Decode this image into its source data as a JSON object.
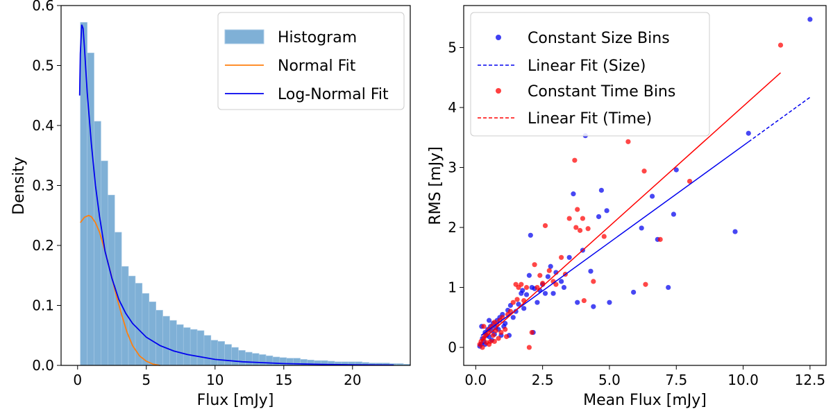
{
  "chart_data": [
    {
      "type": "histogram",
      "xlabel": "Flux [mJy]",
      "ylabel": "Density",
      "xlim": [
        -1.2,
        24.2
      ],
      "ylim": [
        0,
        0.6
      ],
      "xticks": [
        0,
        5,
        10,
        15,
        20
      ],
      "yticks": [
        0.0,
        0.1,
        0.2,
        0.3,
        0.4,
        0.5,
        0.6
      ],
      "legend": [
        "Histogram",
        "Normal Fit",
        "Log-Normal Fit"
      ],
      "legend_position": "top-right",
      "histogram": {
        "name": "Histogram",
        "color": "#7fb0d6",
        "edge_color": "#a7c9e5",
        "bin_start": 0.2,
        "bin_width": 0.5,
        "values": [
          0.572,
          0.521,
          0.407,
          0.341,
          0.284,
          0.222,
          0.165,
          0.149,
          0.137,
          0.12,
          0.106,
          0.092,
          0.082,
          0.075,
          0.068,
          0.063,
          0.06,
          0.058,
          0.05,
          0.042,
          0.04,
          0.035,
          0.03,
          0.025,
          0.022,
          0.02,
          0.018,
          0.016,
          0.014,
          0.013,
          0.012,
          0.012,
          0.01,
          0.009,
          0.008,
          0.008,
          0.007,
          0.006,
          0.006,
          0.006,
          0.006,
          0.005,
          0.004,
          0.004,
          0.004,
          0.003,
          0.003,
          0.002
        ]
      },
      "normal_fit": {
        "name": "Normal Fit",
        "color": "#ff7f0e",
        "x": [
          0.2,
          0.5,
          0.8,
          1.0,
          1.3,
          1.6,
          2.0,
          2.4,
          2.8,
          3.2,
          3.6,
          4.0,
          4.5,
          5.0,
          5.5,
          6.0
        ],
        "y": [
          0.238,
          0.247,
          0.25,
          0.248,
          0.238,
          0.222,
          0.19,
          0.155,
          0.118,
          0.085,
          0.055,
          0.033,
          0.016,
          0.007,
          0.002,
          0.0
        ]
      },
      "lognormal_fit": {
        "name": "Log-Normal Fit",
        "color": "#0000ee",
        "x": [
          0.15,
          0.2,
          0.3,
          0.4,
          0.5,
          0.7,
          1.0,
          1.3,
          1.6,
          2.0,
          2.5,
          3.0,
          3.5,
          4.0,
          5.0,
          6.0,
          7.0,
          8.0,
          10.0,
          12.0,
          15.0,
          18.0,
          20.0,
          23.0
        ],
        "y": [
          0.45,
          0.52,
          0.568,
          0.562,
          0.53,
          0.455,
          0.37,
          0.3,
          0.248,
          0.19,
          0.145,
          0.11,
          0.087,
          0.07,
          0.047,
          0.033,
          0.024,
          0.018,
          0.01,
          0.006,
          0.003,
          0.0015,
          0.001,
          0.0005
        ]
      }
    },
    {
      "type": "scatter",
      "xlabel": "Mean Flux [mJy]",
      "ylabel": "RMS [mJy]",
      "xlim": [
        -0.45,
        13.1
      ],
      "ylim": [
        -0.3,
        5.7
      ],
      "xticks": [
        0.0,
        2.5,
        5.0,
        7.5,
        10.0,
        12.5
      ],
      "yticks": [
        0,
        1,
        2,
        3,
        4,
        5
      ],
      "legend": [
        "Constant Size Bins",
        "Linear Fit (Size)",
        "Constant Time Bins",
        "Linear Fit (Time)"
      ],
      "legend_position": "top-left",
      "series": [
        {
          "name": "Constant Size Bins",
          "color": "#0000ee",
          "points": [
            [
              0.2,
              0.05
            ],
            [
              0.25,
              0.15
            ],
            [
              0.3,
              0.1
            ],
            [
              0.35,
              0.25
            ],
            [
              0.4,
              0.2
            ],
            [
              0.45,
              0.3
            ],
            [
              0.5,
              0.18
            ],
            [
              0.55,
              0.35
            ],
            [
              0.6,
              0.28
            ],
            [
              0.65,
              0.4
            ],
            [
              0.7,
              0.22
            ],
            [
              0.75,
              0.33
            ],
            [
              0.8,
              0.45
            ],
            [
              0.85,
              0.3
            ],
            [
              0.9,
              0.5
            ],
            [
              1.0,
              0.55
            ],
            [
              1.1,
              0.4
            ],
            [
              1.2,
              0.62
            ],
            [
              1.3,
              0.7
            ],
            [
              1.4,
              0.5
            ],
            [
              1.5,
              0.6
            ],
            [
              1.6,
              0.72
            ],
            [
              1.7,
              0.9
            ],
            [
              1.8,
              0.65
            ],
            [
              1.9,
              0.88
            ],
            [
              2.0,
              1.2
            ],
            [
              2.05,
              1.87
            ],
            [
              2.1,
              1.0
            ],
            [
              2.2,
              0.98
            ],
            [
              2.3,
              0.75
            ],
            [
              2.4,
              0.95
            ],
            [
              2.5,
              1.05
            ],
            [
              2.6,
              0.9
            ],
            [
              2.7,
              1.18
            ],
            [
              2.8,
              1.35
            ],
            [
              2.9,
              0.9
            ],
            [
              3.0,
              1.25
            ],
            [
              3.2,
              1.1
            ],
            [
              3.3,
              1.0
            ],
            [
              3.5,
              1.5
            ],
            [
              3.65,
              2.56
            ],
            [
              3.8,
              0.75
            ],
            [
              4.0,
              1.62
            ],
            [
              4.1,
              3.53
            ],
            [
              4.3,
              1.27
            ],
            [
              4.4,
              0.68
            ],
            [
              4.6,
              2.18
            ],
            [
              4.7,
              2.62
            ],
            [
              4.9,
              2.28
            ],
            [
              5.0,
              0.75
            ],
            [
              5.9,
              0.92
            ],
            [
              6.2,
              1.99
            ],
            [
              6.6,
              2.52
            ],
            [
              6.8,
              1.8
            ],
            [
              7.2,
              1.0
            ],
            [
              7.4,
              2.22
            ],
            [
              7.5,
              2.96
            ],
            [
              9.7,
              1.93
            ],
            [
              10.2,
              3.57
            ],
            [
              12.5,
              5.47
            ],
            [
              0.15,
              0.02
            ],
            [
              0.22,
              0.35
            ],
            [
              0.35,
              0.05
            ],
            [
              0.5,
              0.45
            ],
            [
              0.6,
              0.12
            ],
            [
              0.95,
              0.2
            ],
            [
              1.05,
              0.35
            ],
            [
              1.25,
              0.2
            ],
            [
              1.75,
              0.95
            ],
            [
              2.15,
              0.25
            ]
          ]
        },
        {
          "name": "Constant Time Bins",
          "color": "#ff0000",
          "points": [
            [
              0.15,
              0.05
            ],
            [
              0.2,
              0.1
            ],
            [
              0.25,
              0.0
            ],
            [
              0.3,
              0.15
            ],
            [
              0.35,
              0.2
            ],
            [
              0.4,
              0.08
            ],
            [
              0.45,
              0.25
            ],
            [
              0.5,
              0.3
            ],
            [
              0.55,
              0.1
            ],
            [
              0.6,
              0.35
            ],
            [
              0.65,
              0.2
            ],
            [
              0.7,
              0.42
            ],
            [
              0.75,
              0.28
            ],
            [
              0.8,
              0.38
            ],
            [
              0.85,
              0.15
            ],
            [
              0.9,
              0.45
            ],
            [
              1.0,
              0.5
            ],
            [
              1.1,
              0.3
            ],
            [
              1.2,
              0.55
            ],
            [
              1.3,
              0.6
            ],
            [
              1.4,
              0.75
            ],
            [
              1.5,
              1.05
            ],
            [
              1.55,
              0.8
            ],
            [
              1.6,
              1.0
            ],
            [
              1.7,
              1.05
            ],
            [
              1.8,
              0.78
            ],
            [
              1.9,
              1.0
            ],
            [
              2.0,
              0.0
            ],
            [
              2.1,
              0.25
            ],
            [
              2.2,
              1.38
            ],
            [
              2.3,
              1.0
            ],
            [
              2.4,
              1.2
            ],
            [
              2.5,
              1.07
            ],
            [
              2.6,
              2.03
            ],
            [
              2.75,
              1.28
            ],
            [
              2.9,
              1.1
            ],
            [
              3.0,
              1.05
            ],
            [
              3.2,
              1.5
            ],
            [
              3.35,
              1.22
            ],
            [
              3.5,
              2.15
            ],
            [
              3.7,
              3.12
            ],
            [
              3.75,
              2.0
            ],
            [
              3.8,
              2.3
            ],
            [
              3.9,
              1.95
            ],
            [
              4.0,
              2.15
            ],
            [
              4.05,
              0.78
            ],
            [
              4.2,
              1.98
            ],
            [
              4.4,
              1.1
            ],
            [
              4.8,
              1.85
            ],
            [
              5.7,
              3.43
            ],
            [
              6.3,
              2.94
            ],
            [
              6.35,
              1.05
            ],
            [
              6.9,
              1.8
            ],
            [
              8.0,
              2.77
            ],
            [
              11.4,
              5.04
            ],
            [
              0.3,
              0.35
            ],
            [
              0.5,
              0.05
            ],
            [
              0.7,
              0.1
            ],
            [
              0.95,
              0.25
            ],
            [
              1.15,
              0.18
            ]
          ]
        }
      ],
      "fits": [
        {
          "name": "Linear Fit (Size)",
          "color": "#0000ee",
          "x": [
            0.2,
            12.5
          ],
          "y": [
            0.2,
            4.17
          ],
          "dashed_from_x": 10.2
        },
        {
          "name": "Linear Fit (Time)",
          "color": "#ff0000",
          "x": [
            0.2,
            11.4
          ],
          "y": [
            0.1,
            4.58
          ],
          "dashed_from_x": 11.4
        }
      ]
    }
  ]
}
